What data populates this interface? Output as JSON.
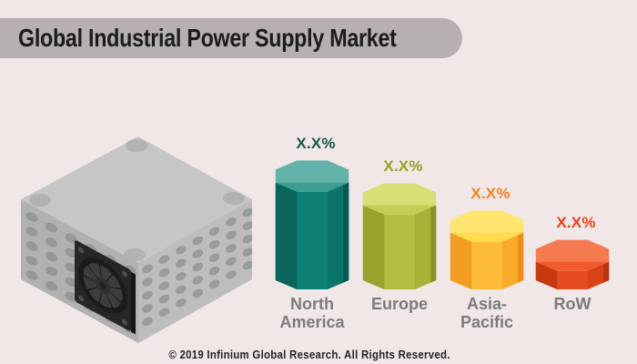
{
  "page": {
    "background_color": "#f2e7e7"
  },
  "header": {
    "title": "Global Industrial Power Supply Market",
    "banner_color": "#b7b0b0"
  },
  "illustration": {
    "name": "industrial-power-supply-unit",
    "description": "isometric gray power supply box with cooling fan and ventilation holes"
  },
  "chart_data": {
    "type": "bar",
    "style": "3d isometric faceted cylinders",
    "title": "Global Industrial Power Supply Market",
    "categories": [
      "North America",
      "Europe",
      "Asia-Pacific",
      "RoW"
    ],
    "values": [
      "X.X%",
      "X.X%",
      "X.X%",
      "X.X%"
    ],
    "bar_height_ratios": [
      1.0,
      0.825,
      0.615,
      0.39
    ],
    "category_color": "#7b7b7b",
    "legend": "none",
    "regions": [
      {
        "label": "North America",
        "label_display": "North\nAmerica",
        "value": "X.X%",
        "ratio": 1.0,
        "value_color": "#18594a",
        "colors": {
          "top_light": "#63b3aa",
          "top": "#3f9e93",
          "front": "#0e8075",
          "left": "#0a665c",
          "right": "#0c756b",
          "edge": "#085a51"
        }
      },
      {
        "label": "Europe",
        "label_display": "Europe",
        "value": "X.X%",
        "ratio": 0.825,
        "value_color": "#92a125",
        "colors": {
          "top_light": "#d8df77",
          "top": "#c4ce57",
          "front": "#b3bf40",
          "left": "#98a22c",
          "right": "#a7b236",
          "edge": "#8a932a"
        }
      },
      {
        "label": "Asia-Pacific",
        "label_display": "Asia-\nPacific",
        "value": "X.X%",
        "ratio": 0.615,
        "value_color": "#f5811d",
        "colors": {
          "top_light": "#ffe570",
          "top": "#ffdc4e",
          "front": "#fcbc37",
          "left": "#f19e22",
          "right": "#f7ab28",
          "edge": "#ee8d19"
        }
      },
      {
        "label": "RoW",
        "label_display": "RoW",
        "value": "X.X%",
        "ratio": 0.39,
        "value_color": "#e7421c",
        "colors": {
          "top_light": "#f57a50",
          "top": "#f15a2e",
          "front": "#e64c1f",
          "left": "#c73a11",
          "right": "#d64317",
          "edge": "#b93410"
        }
      }
    ]
  },
  "footer": {
    "copyright": "© 2019 Infinium Global Research. All Rights Reserved."
  }
}
